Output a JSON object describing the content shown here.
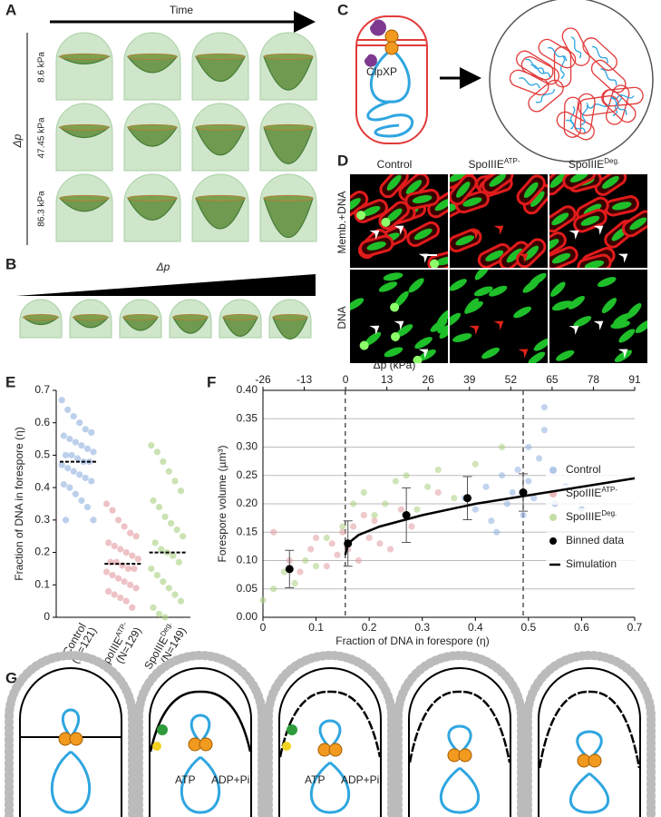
{
  "panel_labels": [
    "A",
    "B",
    "C",
    "D",
    "E",
    "F",
    "G"
  ],
  "panel_a": {
    "time_label": "Time",
    "dp_label": "Δp",
    "rows": [
      "8.6 kPa",
      "47.45 kPa",
      "86.3 kPa"
    ]
  },
  "panel_b": {
    "dp_label": "Δp"
  },
  "panel_c": {
    "enzyme_label": "ClpXP"
  },
  "panel_d": {
    "columns": [
      {
        "text": "Control"
      },
      {
        "text": "SpoIIIE",
        "sup": "ATP-"
      },
      {
        "text": "SpoIIIE",
        "sup": "Deg."
      }
    ],
    "rows": [
      "Memb.+DNA",
      "DNA"
    ]
  },
  "panel_g": {
    "atp": "ATP",
    "adp": "ADP+Pi"
  },
  "chart_data": [
    {
      "type": "strip",
      "y_label": "Fraction of DNA in forespore (η)",
      "categories": [
        {
          "label": "Control",
          "n": "(N=121)"
        },
        {
          "label": "SpoIIIE",
          "sup": "ATP-",
          "n": "(N=129)"
        },
        {
          "label": "SpoIIIE",
          "sup": "Deg.",
          "n": "(N=149)"
        }
      ],
      "series": [
        {
          "color": "#8fb0de",
          "values": [
            0.67,
            0.64,
            0.62,
            0.6,
            0.58,
            0.57,
            0.56,
            0.55,
            0.54,
            0.53,
            0.52,
            0.51,
            0.5,
            0.5,
            0.49,
            0.48,
            0.48,
            0.47,
            0.46,
            0.45,
            0.44,
            0.43,
            0.42,
            0.41,
            0.4,
            0.38,
            0.36,
            0.34,
            0.3,
            0.3
          ]
        },
        {
          "color": "#e29aa0",
          "values": [
            0.35,
            0.33,
            0.3,
            0.28,
            0.26,
            0.25,
            0.23,
            0.22,
            0.21,
            0.2,
            0.19,
            0.18,
            0.17,
            0.17,
            0.16,
            0.15,
            0.15,
            0.14,
            0.13,
            0.12,
            0.11,
            0.1,
            0.09,
            0.08,
            0.07,
            0.06,
            0.05,
            0.03
          ]
        },
        {
          "color": "#a9cf7e",
          "values": [
            0.53,
            0.51,
            0.48,
            0.45,
            0.42,
            0.39,
            0.36,
            0.34,
            0.31,
            0.29,
            0.27,
            0.25,
            0.23,
            0.21,
            0.2,
            0.19,
            0.17,
            0.15,
            0.13,
            0.11,
            0.09,
            0.07,
            0.05,
            0.03,
            0.01,
            0
          ]
        }
      ],
      "medians": [
        0.48,
        0.165,
        0.2
      ],
      "ylim": [
        0,
        0.7
      ],
      "yticks": [
        0,
        0.1,
        0.2,
        0.3,
        0.4,
        0.5,
        0.6,
        0.7
      ]
    },
    {
      "type": "scatter",
      "x_label": "Fraction of DNA in forespore (η)",
      "y_label": "Forespore volume (µm³)",
      "x2_label": "Δp (kPa)",
      "xlim": [
        0,
        0.7
      ],
      "xticks": [
        0,
        0.1,
        0.2,
        0.3,
        0.4,
        0.5,
        0.6,
        0.7
      ],
      "x2lim": [
        -26,
        91
      ],
      "x2ticks": [
        -26,
        -13,
        0,
        13,
        26,
        39,
        52,
        65,
        78,
        91
      ],
      "ylim": [
        0,
        0.4
      ],
      "yticks": [
        {
          "value": 0,
          "label": "0.00"
        },
        {
          "value": 0.05,
          "label": "0.05"
        },
        {
          "value": 0.1,
          "label": "0.10"
        },
        {
          "value": 0.15,
          "label": "0.15"
        },
        {
          "value": 0.2,
          "label": "0.20"
        },
        {
          "value": 0.25,
          "label": "0.25"
        },
        {
          "value": 0.3,
          "label": "0.30"
        },
        {
          "value": 0.35,
          "label": "0.35"
        },
        {
          "value": 0.4,
          "label": "0.40"
        }
      ],
      "vlines": [
        0.155,
        0.49
      ],
      "grid": true,
      "series": [
        {
          "name": "Control",
          "color": "#8fb0de",
          "style": "points",
          "x": [
            0.38,
            0.4,
            0.42,
            0.43,
            0.45,
            0.46,
            0.47,
            0.48,
            0.49,
            0.5,
            0.5,
            0.51,
            0.52,
            0.53,
            0.55,
            0.57,
            0.6,
            0.62,
            0.44,
            0.53
          ],
          "values": [
            0.21,
            0.19,
            0.23,
            0.17,
            0.25,
            0.2,
            0.22,
            0.26,
            0.18,
            0.24,
            0.3,
            0.21,
            0.28,
            0.37,
            0.2,
            0.23,
            0.19,
            0.22,
            0.15,
            0.33
          ]
        },
        {
          "name": "SpoIIIE",
          "sup": "ATP-",
          "color": "#e29aa0",
          "style": "points",
          "x": [
            0.02,
            0.05,
            0.07,
            0.09,
            0.1,
            0.12,
            0.13,
            0.14,
            0.15,
            0.16,
            0.17,
            0.18,
            0.19,
            0.2,
            0.21,
            0.22,
            0.24,
            0.26,
            0.28,
            0.33
          ],
          "values": [
            0.15,
            0.1,
            0.08,
            0.12,
            0.14,
            0.09,
            0.13,
            0.11,
            0.15,
            0.12,
            0.16,
            0.1,
            0.18,
            0.14,
            0.17,
            0.13,
            0.12,
            0.19,
            0.16,
            0.22
          ]
        },
        {
          "name": "SpoIIIE",
          "sup": "Deg.",
          "color": "#a9cf7e",
          "style": "points",
          "x": [
            0,
            0.02,
            0.04,
            0.06,
            0.08,
            0.1,
            0.12,
            0.15,
            0.17,
            0.19,
            0.21,
            0.23,
            0.25,
            0.27,
            0.29,
            0.31,
            0.33,
            0.36,
            0.4,
            0.45
          ],
          "values": [
            0.03,
            0.05,
            0.08,
            0.06,
            0.1,
            0.09,
            0.14,
            0.16,
            0.2,
            0.22,
            0.18,
            0.2,
            0.24,
            0.25,
            0.19,
            0.23,
            0.26,
            0.21,
            0.27,
            0.3
          ]
        },
        {
          "name": "Binned data",
          "color": "#000000",
          "style": "errorbar",
          "x": [
            0.05,
            0.16,
            0.27,
            0.385,
            0.49
          ],
          "values": [
            0.085,
            0.13,
            0.18,
            0.21,
            0.22
          ],
          "errors": [
            0.033,
            0.04,
            0.048,
            0.038,
            0.033
          ]
        },
        {
          "name": "Simulation",
          "color": "#000000",
          "style": "line",
          "x": [
            0.155,
            0.16,
            0.18,
            0.22,
            0.3,
            0.4,
            0.5,
            0.6,
            0.7
          ],
          "values": [
            0.11,
            0.13,
            0.145,
            0.16,
            0.18,
            0.2,
            0.215,
            0.23,
            0.245
          ]
        }
      ]
    }
  ]
}
